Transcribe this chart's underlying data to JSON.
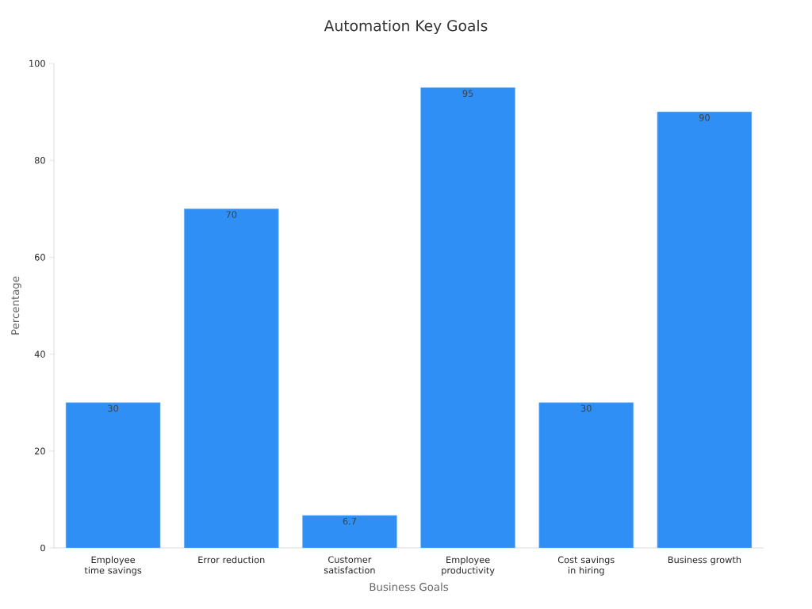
{
  "chart_data": {
    "type": "bar",
    "title": "Automation Key Goals",
    "xlabel": "Business Goals",
    "ylabel": "Percentage",
    "categories": [
      "Employee time savings",
      "Error reduction",
      "Customer satisfaction",
      "Employee productivity",
      "Cost savings in hiring",
      "Business growth"
    ],
    "values": [
      30,
      70,
      6.7,
      95,
      30,
      90
    ],
    "color": "#2f8ff5",
    "ylim": [
      0,
      100
    ],
    "yticks": [
      0,
      20,
      40,
      60,
      80,
      100
    ],
    "grid": false,
    "data_labels": true
  }
}
